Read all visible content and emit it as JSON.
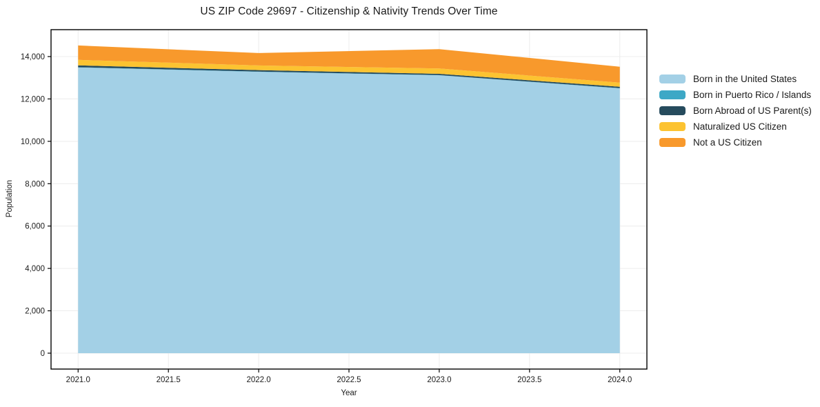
{
  "chart_data": {
    "type": "area",
    "stacked": true,
    "title": "US ZIP Code 29697 - Citizenship & Nativity Trends Over Time",
    "xlabel": "Year",
    "ylabel": "Population",
    "x": [
      2021,
      2022,
      2023,
      2024
    ],
    "series": [
      {
        "name": "Born in the United States",
        "color": "#a3d0e6",
        "values": [
          13485,
          13280,
          13115,
          12500
        ]
      },
      {
        "name": "Born in Puerto Rico / Islands",
        "color": "#3da8c6",
        "values": [
          12,
          10,
          12,
          10
        ]
      },
      {
        "name": "Born Abroad of US Parent(s)",
        "color": "#264b5d",
        "values": [
          88,
          70,
          60,
          65
        ]
      },
      {
        "name": "Naturalized US Citizen",
        "color": "#fcc331",
        "values": [
          260,
          220,
          250,
          195
        ]
      },
      {
        "name": "Not a US Citizen",
        "color": "#f8992c",
        "values": [
          680,
          585,
          915,
          750
        ]
      }
    ],
    "xlim": [
      2020.85,
      2024.15
    ],
    "ylim": [
      -750,
      15270
    ],
    "xticks": [
      2021.0,
      2021.5,
      2022.0,
      2022.5,
      2023.0,
      2023.5,
      2024.0
    ],
    "yticks": [
      0,
      2000,
      4000,
      6000,
      8000,
      10000,
      12000,
      14000
    ],
    "grid": true,
    "grid_color": "#ececec",
    "spine_color": "#000000",
    "legend_position": "right-outside"
  }
}
